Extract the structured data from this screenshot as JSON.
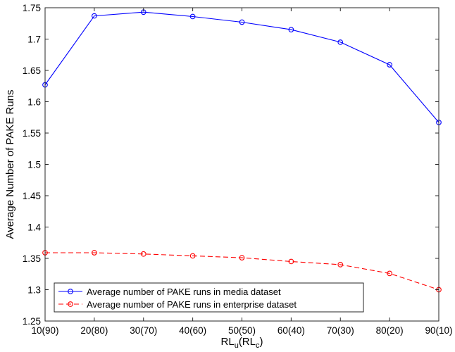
{
  "chart_data": {
    "type": "line",
    "categories": [
      "10(90)",
      "20(80)",
      "30(70)",
      "40(60)",
      "50(50)",
      "60(40)",
      "70(30)",
      "80(20)",
      "90(10)"
    ],
    "xlabel": {
      "base": "RL",
      "sub1": "u",
      "mid": "(RL",
      "sub2": "c",
      "end": ")"
    },
    "ylabel": "Average Number of PAKE Runs",
    "ylim": [
      1.25,
      1.75
    ],
    "yticks": [
      1.25,
      1.3,
      1.35,
      1.4,
      1.45,
      1.5,
      1.55,
      1.6,
      1.65,
      1.7,
      1.75
    ],
    "ytick_labels": [
      "1.25",
      "1.3",
      "1.35",
      "1.4",
      "1.45",
      "1.5",
      "1.55",
      "1.6",
      "1.65",
      "1.7",
      "1.75"
    ],
    "grid": false,
    "legend_position": "bottom-left",
    "series": [
      {
        "name": "Average number of PAKE runs in media dataset",
        "values": [
          1.627,
          1.737,
          1.743,
          1.736,
          1.727,
          1.715,
          1.695,
          1.659,
          1.567
        ],
        "color": "#0000ff",
        "line_style": "solid",
        "marker": "circle"
      },
      {
        "name": "Average number of PAKE runs in enterprise dataset",
        "values": [
          1.359,
          1.359,
          1.357,
          1.354,
          1.351,
          1.345,
          1.34,
          1.326,
          1.3
        ],
        "color": "#ff0000",
        "line_style": "dashed",
        "marker": "circle"
      }
    ]
  }
}
